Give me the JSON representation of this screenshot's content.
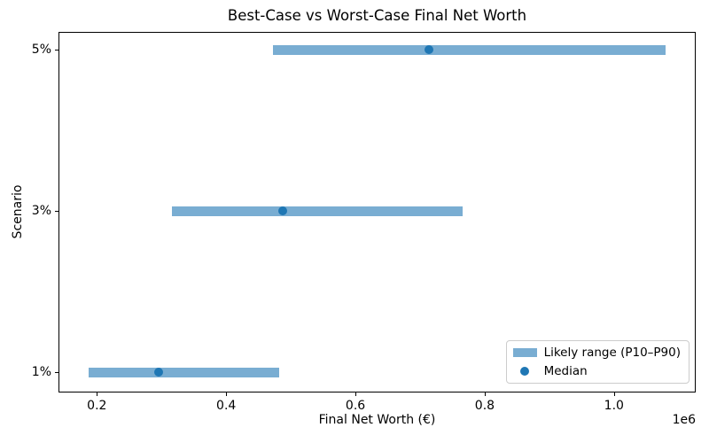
{
  "chart_data": {
    "type": "bar",
    "orientation": "horizontal",
    "title": "Best-Case vs Worst-Case Final Net Worth",
    "xlabel": "Final Net Worth (€)",
    "ylabel": "Scenario",
    "x_offset_label": "1e6",
    "categories": [
      "1%",
      "3%",
      "5%"
    ],
    "series": [
      {
        "name": "Likely range (P10–P90)",
        "role": "range_bar",
        "p10": [
          187000,
          316000,
          473000
        ],
        "p90": [
          482000,
          766000,
          1080000
        ]
      },
      {
        "name": "Median",
        "role": "point",
        "values": [
          296000,
          487000,
          714000
        ]
      }
    ],
    "xlim": [
      142000,
      1125000
    ],
    "x_ticks": [
      {
        "value": 200000,
        "label": "0.2"
      },
      {
        "value": 400000,
        "label": "0.4"
      },
      {
        "value": 600000,
        "label": "0.6"
      },
      {
        "value": 800000,
        "label": "0.8"
      },
      {
        "value": 1000000,
        "label": "1.0"
      }
    ],
    "grid": false,
    "legend": {
      "position": "lower right",
      "entries": [
        "Likely range (P10–P90)",
        "Median"
      ]
    },
    "colors": {
      "bar": "#79add2",
      "median": "#1f77b4",
      "axis": "#000000",
      "text": "#000000",
      "legend_border": "#cccccc",
      "background": "#ffffff"
    }
  }
}
